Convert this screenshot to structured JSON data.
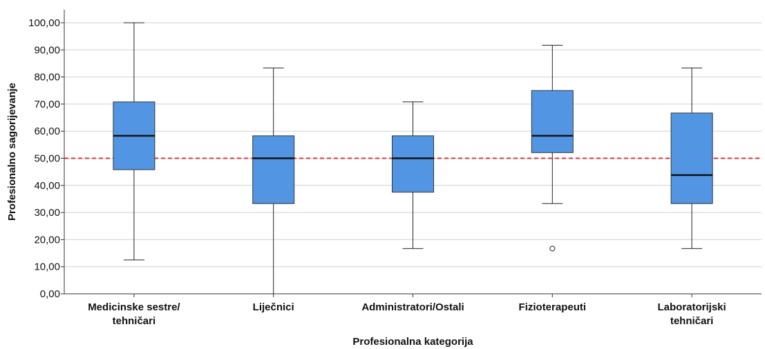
{
  "chart_data": {
    "type": "boxplot",
    "xlabel": "Profesionalna kategorija",
    "ylabel": "Profesionalno sagorijevanje",
    "ylim": [
      0,
      100
    ],
    "yticks": [
      "0,00",
      "10,00",
      "20,00",
      "30,00",
      "40,00",
      "50,00",
      "60,00",
      "70,00",
      "80,00",
      "90,00",
      "100,00"
    ],
    "grid": "horizontal",
    "reference_line": {
      "y": 50,
      "style": "dashed",
      "color": "#e0383b"
    },
    "box_color": "#5296e3",
    "categories": [
      [
        "Medicinske sestre/",
        "tehničari"
      ],
      [
        "Liječnici"
      ],
      [
        "Administratori/Ostali"
      ],
      [
        "Fizioterapeuti"
      ],
      [
        "Laboratorijski",
        "tehničari"
      ]
    ],
    "boxes": [
      {
        "min": 12.5,
        "q1": 45.8,
        "median": 58.3,
        "q3": 70.8,
        "max": 100,
        "outliers": []
      },
      {
        "min": 0,
        "q1": 33.3,
        "median": 50,
        "q3": 58.3,
        "max": 83.3,
        "outliers": []
      },
      {
        "min": 16.7,
        "q1": 37.5,
        "median": 50,
        "q3": 58.3,
        "max": 70.8,
        "outliers": []
      },
      {
        "min": 33.3,
        "q1": 52.1,
        "median": 58.3,
        "q3": 75,
        "max": 91.7,
        "outliers": [
          16.7
        ]
      },
      {
        "min": 16.7,
        "q1": 33.3,
        "median": 43.8,
        "q3": 66.7,
        "max": 83.3,
        "outliers": []
      }
    ]
  }
}
